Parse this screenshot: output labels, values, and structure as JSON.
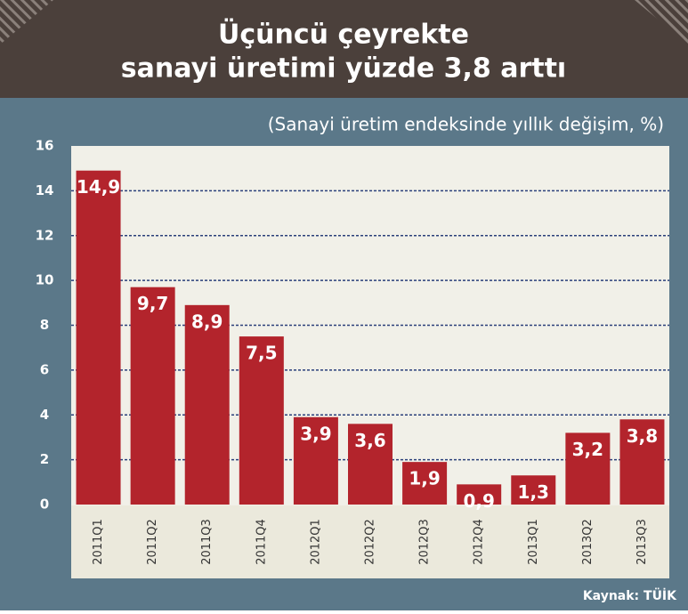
{
  "chart_data": {
    "type": "bar",
    "title": [
      "Üçüncü çeyrekte",
      "sanayi üretimi yüzde 3,8 arttı"
    ],
    "subtitle": "(Sanayi üretim endeksinde yıllık değişim, %)",
    "source": "Kaynak: TÜİK",
    "categories": [
      "2011Q1",
      "2011Q2",
      "2011Q3",
      "2011Q4",
      "2012Q1",
      "2012Q2",
      "2012Q3",
      "2012Q4",
      "2013Q1",
      "2013Q2",
      "2013Q3"
    ],
    "values": [
      14.9,
      9.7,
      8.9,
      7.5,
      3.9,
      3.6,
      1.9,
      0.9,
      1.3,
      3.2,
      3.8
    ],
    "value_labels": [
      "14,9",
      "9,7",
      "8,9",
      "7,5",
      "3,9",
      "3,6",
      "1,9",
      "0,9",
      "1,3",
      "3,2",
      "3,8"
    ],
    "color": "#b3242c",
    "ylim": [
      0,
      16
    ],
    "yticks": [
      0,
      2,
      4,
      6,
      8,
      10,
      12,
      14,
      16
    ],
    "grid": true
  }
}
